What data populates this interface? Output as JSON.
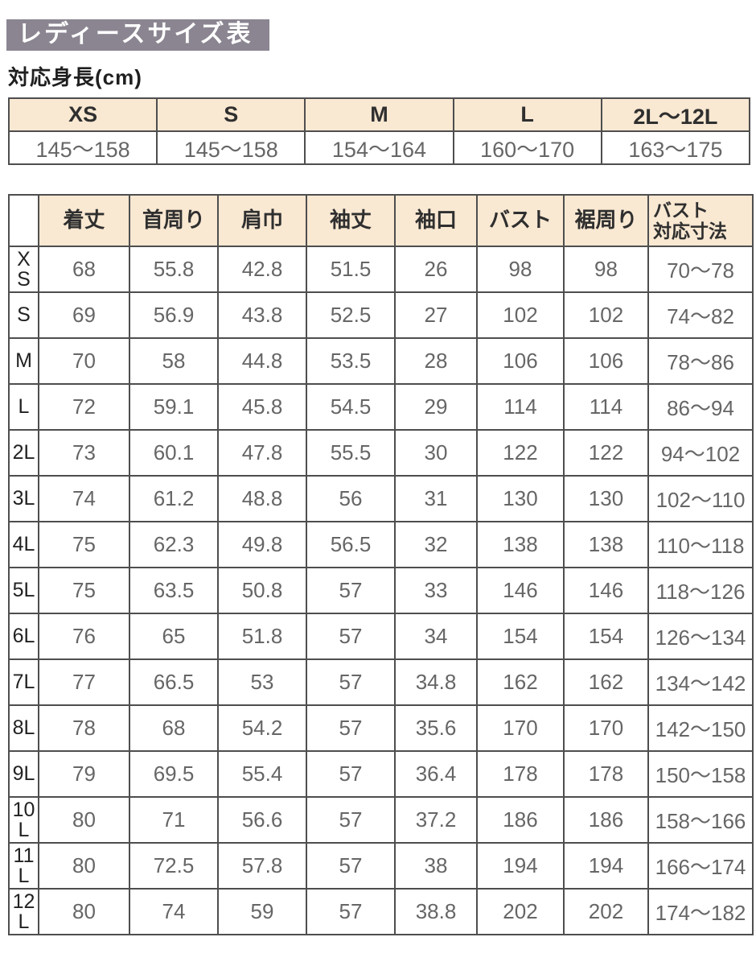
{
  "page": {
    "title": "レディースサイズ表",
    "subtitle": "対応身長(cm)"
  },
  "colors": {
    "title_bg": "#8b8591",
    "header_bg": "#f9e8d2",
    "border": "#4e4e4e",
    "value_text": "#666666"
  },
  "height_table": {
    "columns": [
      {
        "size": "XS",
        "range": "145〜158"
      },
      {
        "size": "S",
        "range": "145〜158"
      },
      {
        "size": "M",
        "range": "154〜164"
      },
      {
        "size": "L",
        "range": "160〜170"
      },
      {
        "size": "2L〜12L",
        "range": "163〜175"
      }
    ]
  },
  "size_table": {
    "columns": [
      "着丈",
      "首周り",
      "肩巾",
      "袖丈",
      "袖口",
      "バスト",
      "裾周り",
      "バスト\n対応寸法"
    ],
    "rows": [
      {
        "label": "XS",
        "values": [
          "68",
          "55.8",
          "42.8",
          "51.5",
          "26",
          "98",
          "98",
          "70〜78"
        ]
      },
      {
        "label": "S",
        "values": [
          "69",
          "56.9",
          "43.8",
          "52.5",
          "27",
          "102",
          "102",
          "74〜82"
        ]
      },
      {
        "label": "M",
        "values": [
          "70",
          "58",
          "44.8",
          "53.5",
          "28",
          "106",
          "106",
          "78〜86"
        ]
      },
      {
        "label": "L",
        "values": [
          "72",
          "59.1",
          "45.8",
          "54.5",
          "29",
          "114",
          "114",
          "86〜94"
        ]
      },
      {
        "label": "2L",
        "values": [
          "73",
          "60.1",
          "47.8",
          "55.5",
          "30",
          "122",
          "122",
          "94〜102"
        ]
      },
      {
        "label": "3L",
        "values": [
          "74",
          "61.2",
          "48.8",
          "56",
          "31",
          "130",
          "130",
          "102〜110"
        ]
      },
      {
        "label": "4L",
        "values": [
          "75",
          "62.3",
          "49.8",
          "56.5",
          "32",
          "138",
          "138",
          "110〜118"
        ]
      },
      {
        "label": "5L",
        "values": [
          "75",
          "63.5",
          "50.8",
          "57",
          "33",
          "146",
          "146",
          "118〜126"
        ]
      },
      {
        "label": "6L",
        "values": [
          "76",
          "65",
          "51.8",
          "57",
          "34",
          "154",
          "154",
          "126〜134"
        ]
      },
      {
        "label": "7L",
        "values": [
          "77",
          "66.5",
          "53",
          "57",
          "34.8",
          "162",
          "162",
          "134〜142"
        ]
      },
      {
        "label": "8L",
        "values": [
          "78",
          "68",
          "54.2",
          "57",
          "35.6",
          "170",
          "170",
          "142〜150"
        ]
      },
      {
        "label": "9L",
        "values": [
          "79",
          "69.5",
          "55.4",
          "57",
          "36.4",
          "178",
          "178",
          "150〜158"
        ]
      },
      {
        "label": "10L",
        "values": [
          "80",
          "71",
          "56.6",
          "57",
          "37.2",
          "186",
          "186",
          "158〜166"
        ]
      },
      {
        "label": "11L",
        "values": [
          "80",
          "72.5",
          "57.8",
          "57",
          "38",
          "194",
          "194",
          "166〜174"
        ]
      },
      {
        "label": "12L",
        "values": [
          "80",
          "74",
          "59",
          "57",
          "38.8",
          "202",
          "202",
          "174〜182"
        ]
      }
    ]
  }
}
